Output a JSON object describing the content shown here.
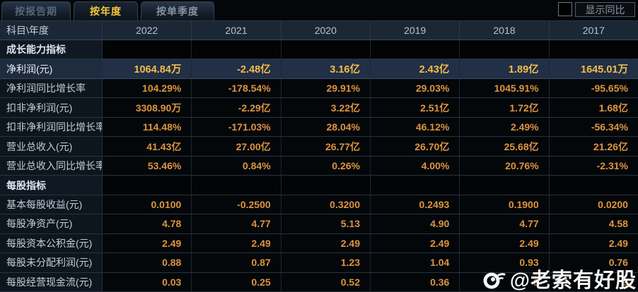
{
  "tabs": [
    {
      "label": "按报告期",
      "active": false
    },
    {
      "label": "按年度",
      "active": true
    },
    {
      "label": "按单季度",
      "active": false
    }
  ],
  "controls": {
    "show_yoy_label": "显示同比",
    "show_yoy_checked": false
  },
  "table": {
    "corner_label": "科目\\年度",
    "years": [
      "2022",
      "2021",
      "2020",
      "2019",
      "2018",
      "2017"
    ],
    "more_columns_glyph": "»",
    "rows": [
      {
        "type": "section",
        "label": "成长能力指标",
        "values": [
          "",
          "",
          "",
          "",
          "",
          ""
        ]
      },
      {
        "type": "highlight",
        "label": "净利润(元)",
        "values": [
          "1064.84万",
          "-2.48亿",
          "3.16亿",
          "2.43亿",
          "1.89亿",
          "1645.01万"
        ]
      },
      {
        "type": "data",
        "label": "净利润同比增长率",
        "values": [
          "104.29%",
          "-178.54%",
          "29.91%",
          "29.03%",
          "1045.91%",
          "-95.65%"
        ]
      },
      {
        "type": "data",
        "label": "扣非净利润(元)",
        "values": [
          "3308.90万",
          "-2.29亿",
          "3.22亿",
          "2.51亿",
          "1.72亿",
          "1.68亿"
        ]
      },
      {
        "type": "data",
        "label": "扣非净利润同比增长率",
        "values": [
          "114.48%",
          "-171.03%",
          "28.04%",
          "46.12%",
          "2.49%",
          "-56.34%"
        ]
      },
      {
        "type": "data",
        "label": "营业总收入(元)",
        "values": [
          "41.43亿",
          "27.00亿",
          "26.77亿",
          "26.70亿",
          "25.68亿",
          "21.26亿"
        ]
      },
      {
        "type": "data",
        "label": "营业总收入同比增长率",
        "values": [
          "53.46%",
          "0.84%",
          "0.26%",
          "4.00%",
          "20.76%",
          "-2.31%"
        ]
      },
      {
        "type": "section",
        "label": "每股指标",
        "values": [
          "",
          "",
          "",
          "",
          "",
          ""
        ]
      },
      {
        "type": "data",
        "label": "基本每股收益(元)",
        "values": [
          "0.0100",
          "-0.2500",
          "0.3200",
          "0.2493",
          "0.1900",
          "0.0200"
        ]
      },
      {
        "type": "data",
        "label": "每股净资产(元)",
        "values": [
          "4.78",
          "4.77",
          "5.13",
          "4.90",
          "4.77",
          "4.58"
        ]
      },
      {
        "type": "data",
        "label": "每股资本公积金(元)",
        "values": [
          "2.49",
          "2.49",
          "2.49",
          "2.49",
          "2.49",
          "2.49"
        ]
      },
      {
        "type": "data",
        "label": "每股未分配利润(元)",
        "values": [
          "0.88",
          "0.87",
          "1.23",
          "1.04",
          "0.93",
          "0.76"
        ]
      },
      {
        "type": "data",
        "label": "每股经营现金流(元)",
        "values": [
          "0.03",
          "0.25",
          "0.52",
          "0.36",
          "0",
          "9"
        ]
      }
    ]
  },
  "watermark": {
    "text": "@老索有好股",
    "icon": "weibo-logo"
  },
  "colors": {
    "background": "#04060a",
    "header_bg": "#1b2734",
    "label_col_bg": "#0e151d",
    "value_text": "#dd9540",
    "active_tab_text": "#f6c63a",
    "highlight_row_bg": "#212f47",
    "highlight_value_text": "#f4bc48",
    "row_border": "#27343f"
  }
}
